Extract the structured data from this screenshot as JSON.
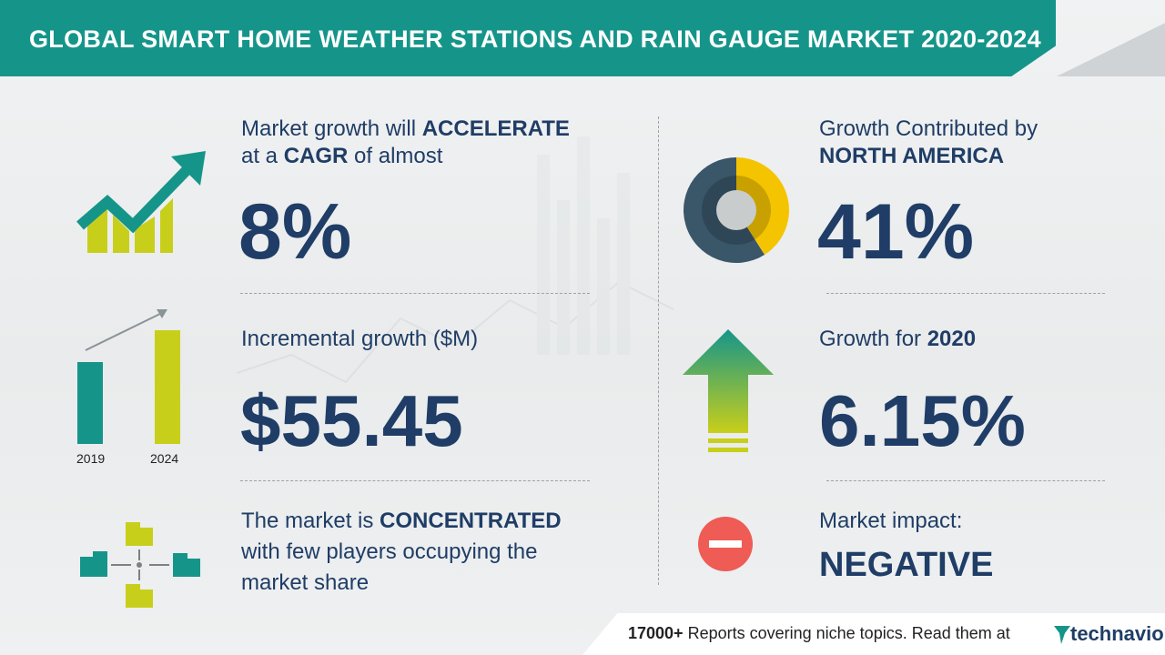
{
  "header": {
    "title": "GLOBAL SMART HOME WEATHER STATIONS AND RAIN GAUGE MARKET 2020-2024"
  },
  "cagr": {
    "line1_pre": "Market growth will ",
    "line1_bold": "ACCELERATE",
    "line2_pre": "at a ",
    "line2_bold": "CAGR",
    "line2_post": " of almost",
    "value": "8%"
  },
  "incremental": {
    "label": "Incremental growth ($M)",
    "value": "$55.45",
    "bar_left_label": "2019",
    "bar_right_label": "2024"
  },
  "concentration": {
    "line1_pre": "The market is ",
    "line1_bold": "CONCENTRATED",
    "line2": "with few players occupying the",
    "line3": "market share"
  },
  "region": {
    "line1": "Growth Contributed by",
    "line2_bold": "NORTH AMERICA",
    "value": "41%",
    "share": 0.41
  },
  "growth_year": {
    "label_pre": "Growth for ",
    "label_bold": "2020",
    "value": "6.15%"
  },
  "impact": {
    "label": "Market impact:",
    "value": "NEGATIVE"
  },
  "footer": {
    "count": "17000+",
    "text": " Reports covering niche topics. Read them at",
    "brand": "technavio"
  },
  "colors": {
    "teal": "#15958a",
    "navy": "#1f3d66",
    "lime": "#c8cf1a",
    "yellow": "#f5c400",
    "red": "#ef5b55"
  },
  "icons": [
    "growth-chart-icon",
    "bar-growth-icon",
    "buildings-icon",
    "donut-chart-icon",
    "up-arrow-icon",
    "minus-circle-icon",
    "technavio-logo-icon"
  ]
}
